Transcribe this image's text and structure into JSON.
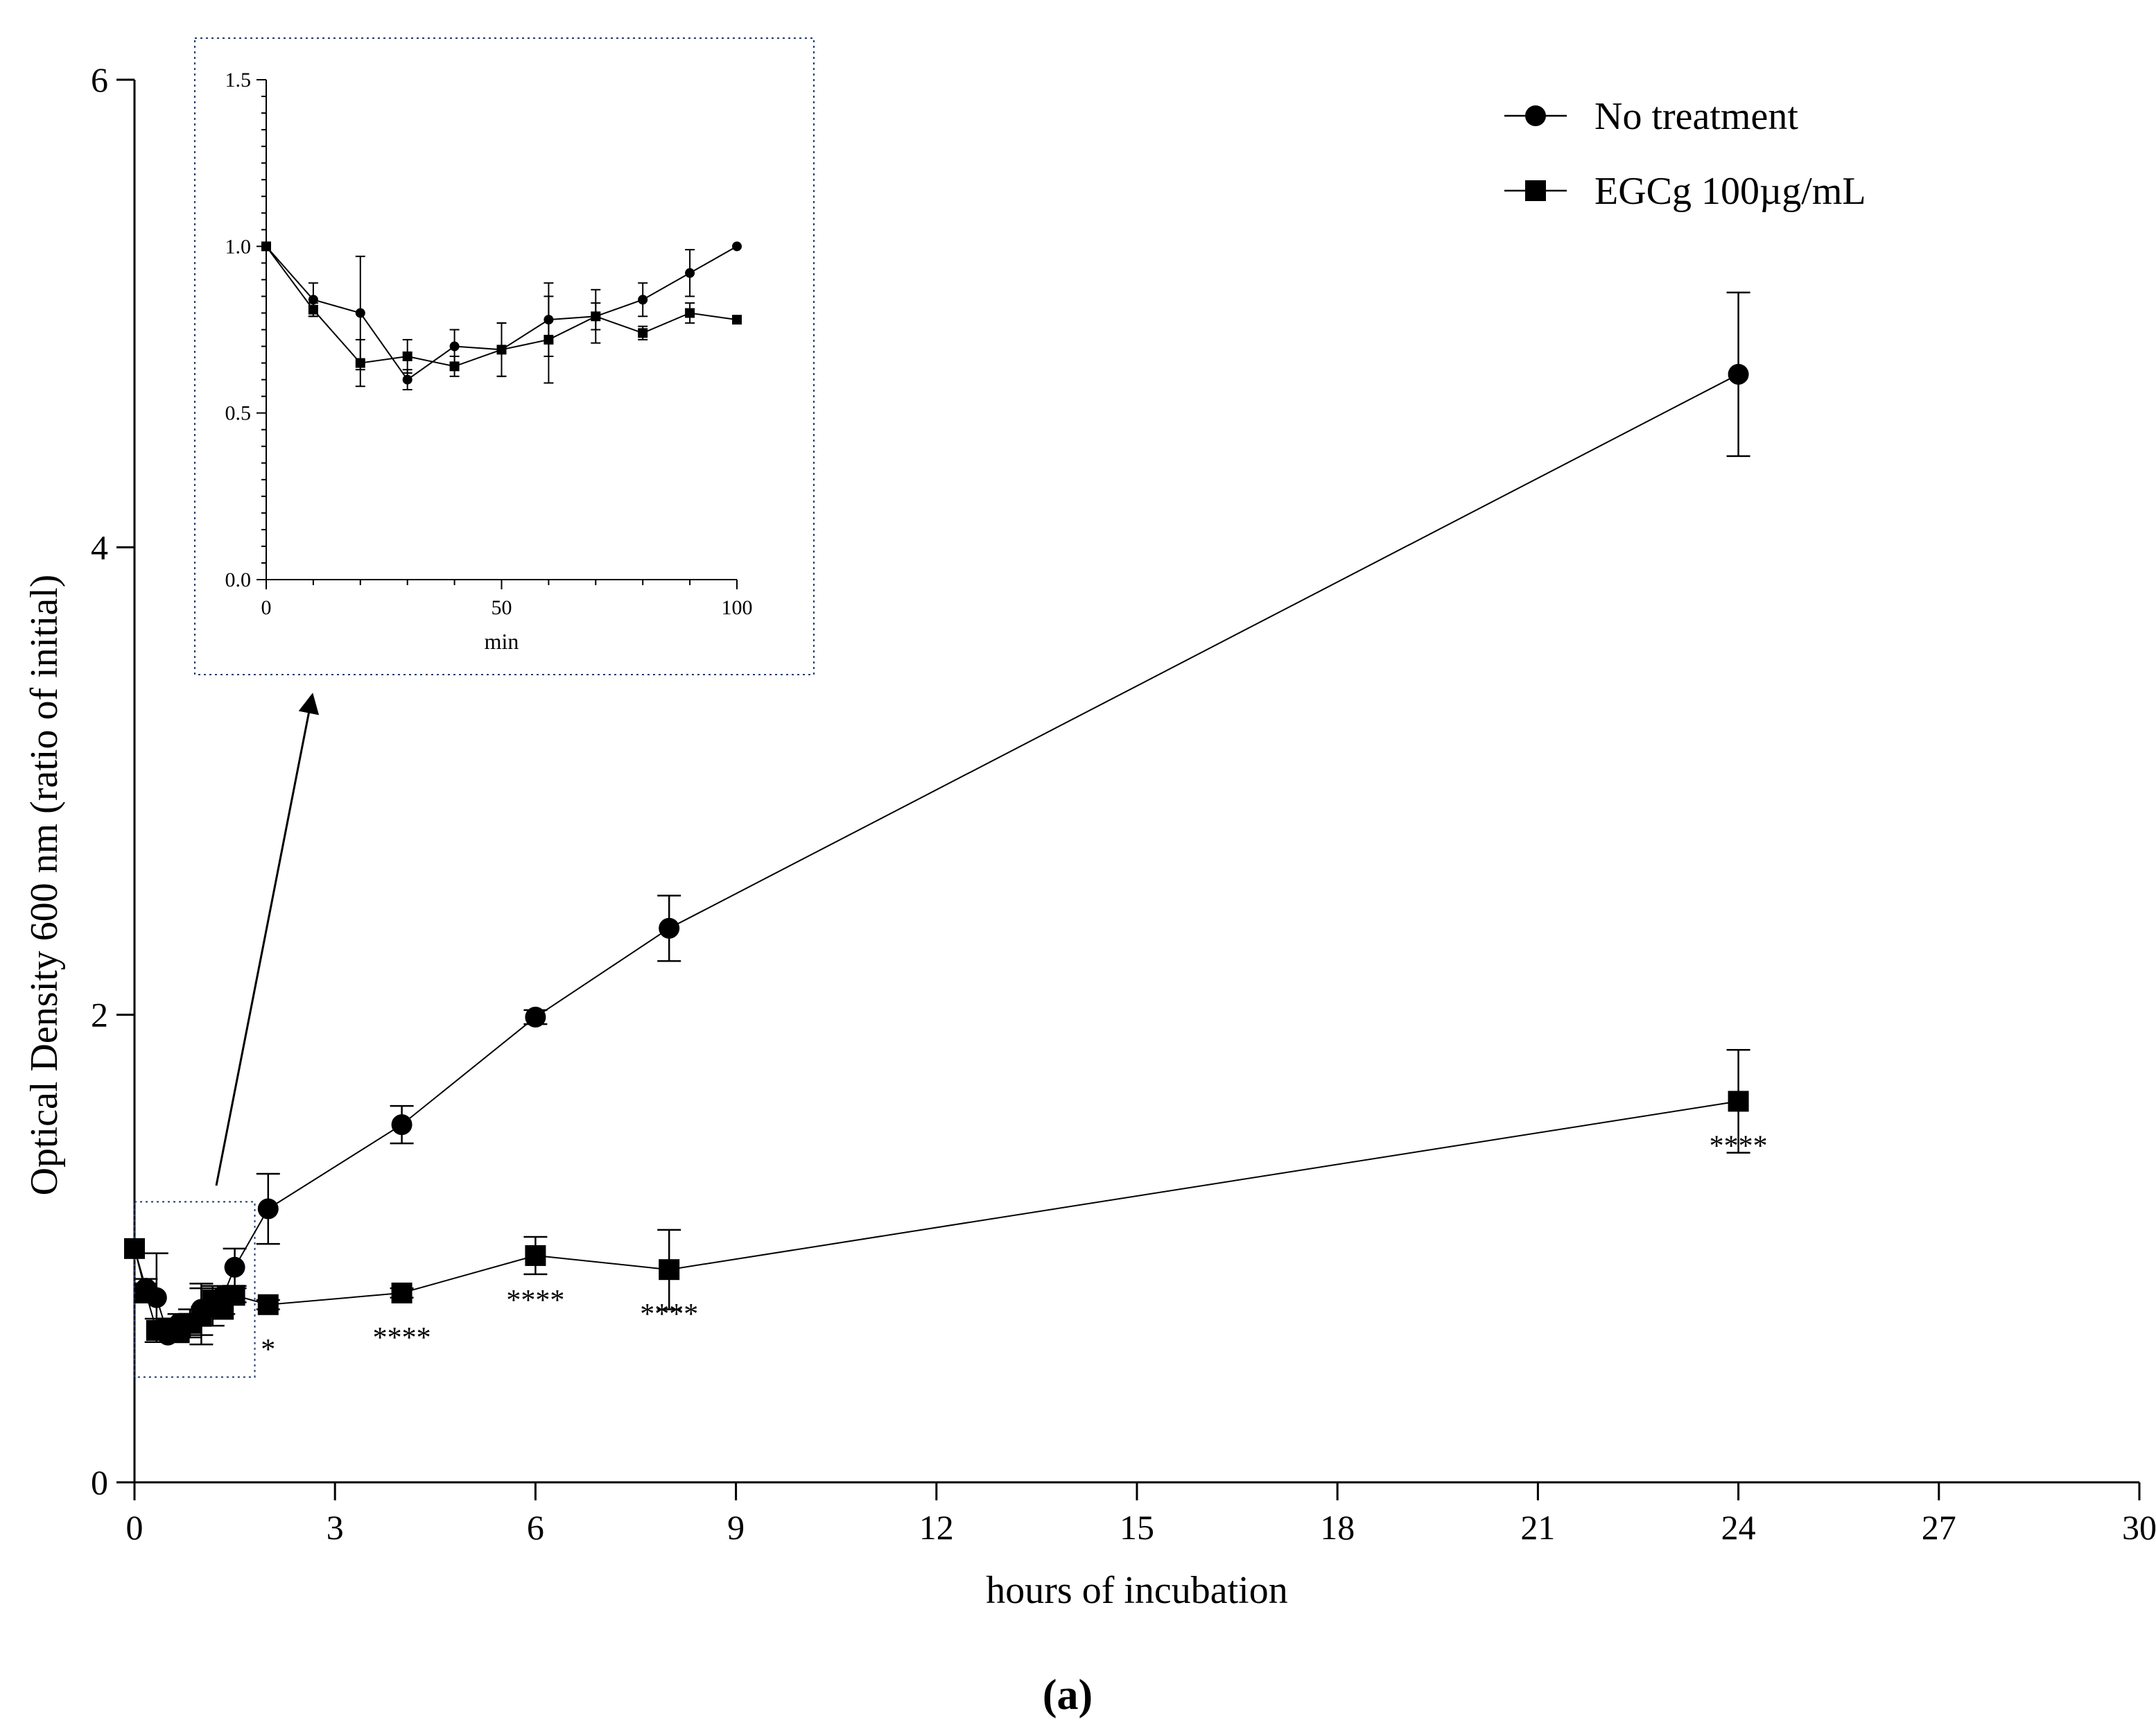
{
  "chart_data": {
    "type": "line",
    "caption": "(a)",
    "xlabel": "hours of incubation",
    "ylabel": "Optical Density 600 nm (ratio of initial)",
    "xlim": [
      0,
      30
    ],
    "ylim": [
      0,
      6
    ],
    "xticks": [
      "0",
      "3",
      "6",
      "9",
      "12",
      "15",
      "18",
      "21",
      "24",
      "27",
      "30"
    ],
    "yticks": [
      "0",
      "2",
      "4",
      "6"
    ],
    "grid": false,
    "legend_position": "top-right",
    "series": [
      {
        "name": "No treatment",
        "marker": "circle",
        "points": [
          {
            "x": 0,
            "y": 1.0,
            "err": 0.0
          },
          {
            "x": 0.17,
            "y": 0.83,
            "err": 0.04
          },
          {
            "x": 0.33,
            "y": 0.79,
            "err": 0.19
          },
          {
            "x": 0.5,
            "y": 0.63,
            "err": 0.03
          },
          {
            "x": 0.67,
            "y": 0.68,
            "err": 0.04
          },
          {
            "x": 0.83,
            "y": 0.68,
            "err": 0.03
          },
          {
            "x": 1.0,
            "y": 0.74,
            "err": 0.11
          },
          {
            "x": 1.17,
            "y": 0.75,
            "err": 0.08
          },
          {
            "x": 1.33,
            "y": 0.8,
            "err": 0.02
          },
          {
            "x": 1.5,
            "y": 0.92,
            "err": 0.08
          },
          {
            "x": 2,
            "y": 1.17,
            "err": 0.15
          },
          {
            "x": 4,
            "y": 1.53,
            "err": 0.08
          },
          {
            "x": 6,
            "y": 1.99,
            "err": 0.03
          },
          {
            "x": 8,
            "y": 2.37,
            "err": 0.14
          },
          {
            "x": 24,
            "y": 4.74,
            "err": 0.35
          }
        ]
      },
      {
        "name": "EGCg 100µg/mL",
        "marker": "square",
        "points": [
          {
            "x": 0,
            "y": 1.0,
            "err": 0.0
          },
          {
            "x": 0.17,
            "y": 0.81,
            "err": 0.02
          },
          {
            "x": 0.33,
            "y": 0.65,
            "err": 0.05
          },
          {
            "x": 0.5,
            "y": 0.66,
            "err": 0.02
          },
          {
            "x": 0.67,
            "y": 0.64,
            "err": 0.02
          },
          {
            "x": 0.83,
            "y": 0.68,
            "err": 0.06
          },
          {
            "x": 1.0,
            "y": 0.71,
            "err": 0.12
          },
          {
            "x": 1.17,
            "y": 0.78,
            "err": 0.06
          },
          {
            "x": 1.33,
            "y": 0.74,
            "err": 0.02
          },
          {
            "x": 1.5,
            "y": 0.8,
            "err": 0.03
          },
          {
            "x": 2,
            "y": 0.76,
            "err": 0.02
          },
          {
            "x": 4,
            "y": 0.81,
            "err": 0.02
          },
          {
            "x": 6,
            "y": 0.97,
            "err": 0.08
          },
          {
            "x": 8,
            "y": 0.91,
            "err": 0.17
          },
          {
            "x": 24,
            "y": 1.63,
            "err": 0.22
          }
        ]
      }
    ],
    "significance": [
      {
        "x": 2,
        "y": 0.76,
        "label": "*"
      },
      {
        "x": 4,
        "y": 0.81,
        "label": "****"
      },
      {
        "x": 6,
        "y": 0.97,
        "label": "****"
      },
      {
        "x": 8,
        "y": 0.91,
        "label": "****"
      },
      {
        "x": 24,
        "y": 1.63,
        "label": "****"
      }
    ],
    "inset": {
      "xlabel": "min",
      "xlim": [
        0,
        100
      ],
      "ylim": [
        0,
        1.5
      ],
      "xticks": [
        "0",
        "50",
        "100"
      ],
      "yticks": [
        "0.0",
        "0.5",
        "1.0",
        "1.5"
      ],
      "source_region": {
        "x": [
          0,
          1.8
        ],
        "y": [
          0.45,
          1.2
        ]
      },
      "series": [
        {
          "name": "No treatment",
          "marker": "circle",
          "points": [
            {
              "x": 0,
              "y": 1.0,
              "err": 0.0
            },
            {
              "x": 10,
              "y": 0.84,
              "err": 0.05
            },
            {
              "x": 20,
              "y": 0.8,
              "err": 0.17
            },
            {
              "x": 30,
              "y": 0.6,
              "err": 0.03
            },
            {
              "x": 40,
              "y": 0.7,
              "err": 0.05
            },
            {
              "x": 50,
              "y": 0.69,
              "err": 0.08
            },
            {
              "x": 60,
              "y": 0.78,
              "err": 0.11
            },
            {
              "x": 70,
              "y": 0.79,
              "err": 0.08
            },
            {
              "x": 80,
              "y": 0.84,
              "err": 0.05
            },
            {
              "x": 90,
              "y": 0.92,
              "err": 0.07
            },
            {
              "x": 100,
              "y": 1.0,
              "err": 0.0
            }
          ]
        },
        {
          "name": "EGCg 100µg/mL",
          "marker": "square",
          "points": [
            {
              "x": 0,
              "y": 1.0,
              "err": 0.0
            },
            {
              "x": 10,
              "y": 0.81,
              "err": 0.02
            },
            {
              "x": 20,
              "y": 0.65,
              "err": 0.07
            },
            {
              "x": 30,
              "y": 0.67,
              "err": 0.05
            },
            {
              "x": 40,
              "y": 0.64,
              "err": 0.03
            },
            {
              "x": 50,
              "y": 0.69,
              "err": 0.08
            },
            {
              "x": 60,
              "y": 0.72,
              "err": 0.13
            },
            {
              "x": 70,
              "y": 0.79,
              "err": 0.04
            },
            {
              "x": 80,
              "y": 0.74,
              "err": 0.02
            },
            {
              "x": 90,
              "y": 0.8,
              "err": 0.03
            },
            {
              "x": 100,
              "y": 0.78,
              "err": 0.0
            }
          ]
        }
      ]
    }
  }
}
